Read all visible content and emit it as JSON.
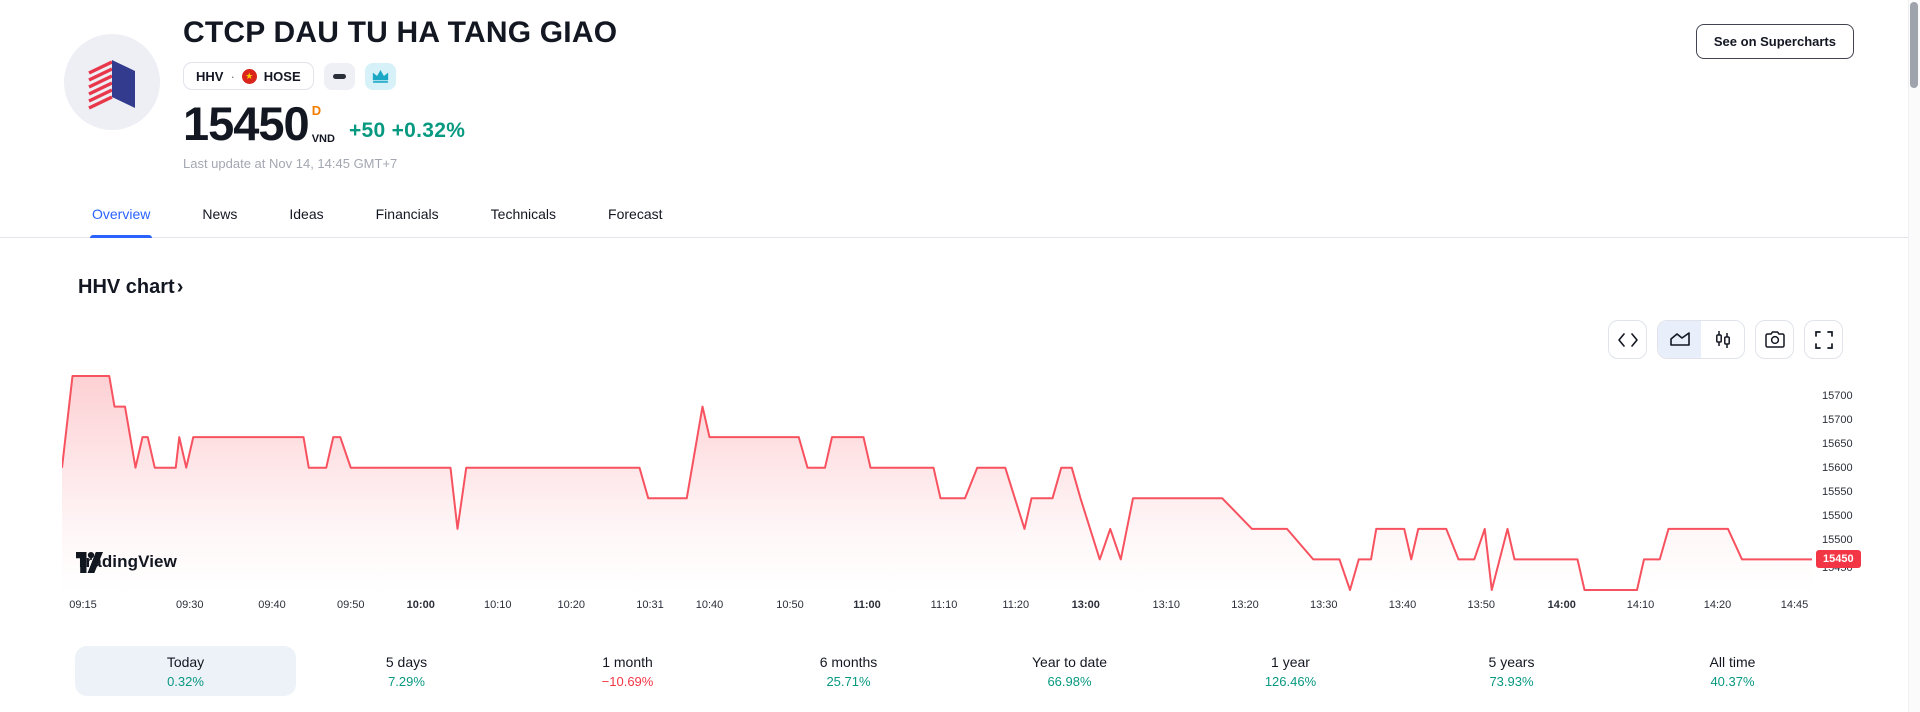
{
  "header": {
    "title": "CTCP DAU TU HA TANG GIAO",
    "symbol": "HHV",
    "dot": "·",
    "flag_star": "★",
    "exchange": "HOSE",
    "price": "15450",
    "interval_badge": "D",
    "currency": "VND",
    "change_abs": "+50",
    "change_pct": "+0.32%",
    "last_update": "Last update at Nov 14, 14:45 GMT+7",
    "supercharts_button": "See on Supercharts"
  },
  "tabs": {
    "active": "Overview",
    "items": [
      "Overview",
      "News",
      "Ideas",
      "Financials",
      "Technicals",
      "Forecast"
    ]
  },
  "chart_section": {
    "heading": "HHV chart",
    "chevron": "›",
    "watermark": "TradingView"
  },
  "toolbar": {
    "buttons": [
      "code",
      "area-chart",
      "candles-chart",
      "camera",
      "fullscreen"
    ],
    "selected_chart_type": "area-chart"
  },
  "chart_data": {
    "type": "area",
    "symbol": "HHV",
    "line_color": "#F7525F",
    "fill_color_top": "rgba(247,82,95,0.26)",
    "current_price": 15450,
    "current_price_label": "15450",
    "current_price_badge_color": "#F23645",
    "price_range": [
      15400,
      15750
    ],
    "y_axis_labels": [
      "15700",
      "15700",
      "15650",
      "15600",
      "15550",
      "15500",
      "15500"
    ],
    "y_axis_label_under_badge": "15450",
    "x_axis_labels": [
      {
        "t": "09:15",
        "pos": 12,
        "bold": false
      },
      {
        "t": "09:30",
        "pos": 73,
        "bold": false
      },
      {
        "t": "09:40",
        "pos": 120,
        "bold": false
      },
      {
        "t": "09:50",
        "pos": 165,
        "bold": false
      },
      {
        "t": "10:00",
        "pos": 205,
        "bold": true
      },
      {
        "t": "10:10",
        "pos": 249,
        "bold": false
      },
      {
        "t": "10:20",
        "pos": 291,
        "bold": false
      },
      {
        "t": "10:31",
        "pos": 336,
        "bold": false
      },
      {
        "t": "10:40",
        "pos": 370,
        "bold": false
      },
      {
        "t": "10:50",
        "pos": 416,
        "bold": false
      },
      {
        "t": "11:00",
        "pos": 460,
        "bold": true
      },
      {
        "t": "11:10",
        "pos": 504,
        "bold": false
      },
      {
        "t": "11:20",
        "pos": 545,
        "bold": false
      },
      {
        "t": "13:00",
        "pos": 585,
        "bold": true
      },
      {
        "t": "13:10",
        "pos": 631,
        "bold": false
      },
      {
        "t": "13:20",
        "pos": 676,
        "bold": false
      },
      {
        "t": "13:30",
        "pos": 721,
        "bold": false
      },
      {
        "t": "13:40",
        "pos": 766,
        "bold": false
      },
      {
        "t": "13:50",
        "pos": 811,
        "bold": false
      },
      {
        "t": "14:00",
        "pos": 857,
        "bold": true
      },
      {
        "t": "14:10",
        "pos": 902,
        "bold": false
      },
      {
        "t": "14:20",
        "pos": 946,
        "bold": false
      },
      {
        "t": "14:45",
        "pos": 990,
        "bold": false
      }
    ],
    "points": [
      [
        0,
        15600
      ],
      [
        6,
        15750
      ],
      [
        27,
        15750
      ],
      [
        30,
        15700
      ],
      [
        36,
        15700
      ],
      [
        42,
        15600
      ],
      [
        46,
        15650
      ],
      [
        49,
        15650
      ],
      [
        53,
        15600
      ],
      [
        65,
        15600
      ],
      [
        67,
        15650
      ],
      [
        71,
        15600
      ],
      [
        75,
        15650
      ],
      [
        138,
        15650
      ],
      [
        141,
        15600
      ],
      [
        151,
        15600
      ],
      [
        155,
        15650
      ],
      [
        159,
        15650
      ],
      [
        165,
        15600
      ],
      [
        222,
        15600
      ],
      [
        226,
        15500
      ],
      [
        231,
        15600
      ],
      [
        298,
        15600
      ],
      [
        330,
        15600
      ],
      [
        335,
        15550
      ],
      [
        357,
        15550
      ],
      [
        366,
        15700
      ],
      [
        370,
        15650
      ],
      [
        421,
        15650
      ],
      [
        426,
        15600
      ],
      [
        436,
        15600
      ],
      [
        440,
        15650
      ],
      [
        458,
        15650
      ],
      [
        462,
        15600
      ],
      [
        498,
        15600
      ],
      [
        502,
        15550
      ],
      [
        516,
        15550
      ],
      [
        523,
        15600
      ],
      [
        539,
        15600
      ],
      [
        550,
        15500
      ],
      [
        554,
        15550
      ],
      [
        566,
        15550
      ],
      [
        571,
        15600
      ],
      [
        577,
        15600
      ],
      [
        582,
        15550
      ],
      [
        593,
        15450
      ],
      [
        599,
        15500
      ],
      [
        605,
        15450
      ],
      [
        612,
        15550
      ],
      [
        663,
        15550
      ],
      [
        680,
        15500
      ],
      [
        700,
        15500
      ],
      [
        715,
        15450
      ],
      [
        730,
        15450
      ],
      [
        736,
        15400
      ],
      [
        741,
        15450
      ],
      [
        748,
        15450
      ],
      [
        751,
        15500
      ],
      [
        767,
        15500
      ],
      [
        771,
        15450
      ],
      [
        775,
        15500
      ],
      [
        791,
        15500
      ],
      [
        798,
        15450
      ],
      [
        807,
        15450
      ],
      [
        813,
        15500
      ],
      [
        817,
        15400
      ],
      [
        826,
        15500
      ],
      [
        830,
        15450
      ],
      [
        866,
        15450
      ],
      [
        870,
        15400
      ],
      [
        900,
        15400
      ],
      [
        904,
        15450
      ],
      [
        913,
        15450
      ],
      [
        918,
        15500
      ],
      [
        952,
        15500
      ],
      [
        960,
        15450
      ],
      [
        1000,
        15450
      ]
    ]
  },
  "performance": {
    "items": [
      {
        "label": "Today",
        "value": "0.32%",
        "direction": "up",
        "selected": true
      },
      {
        "label": "5 days",
        "value": "7.29%",
        "direction": "up",
        "selected": false
      },
      {
        "label": "1 month",
        "value": "−10.69%",
        "direction": "down",
        "selected": false
      },
      {
        "label": "6 months",
        "value": "25.71%",
        "direction": "up",
        "selected": false
      },
      {
        "label": "Year to date",
        "value": "66.98%",
        "direction": "up",
        "selected": false
      },
      {
        "label": "1 year",
        "value": "126.46%",
        "direction": "up",
        "selected": false
      },
      {
        "label": "5 years",
        "value": "73.93%",
        "direction": "up",
        "selected": false
      },
      {
        "label": "All time",
        "value": "40.37%",
        "direction": "up",
        "selected": false
      }
    ]
  }
}
